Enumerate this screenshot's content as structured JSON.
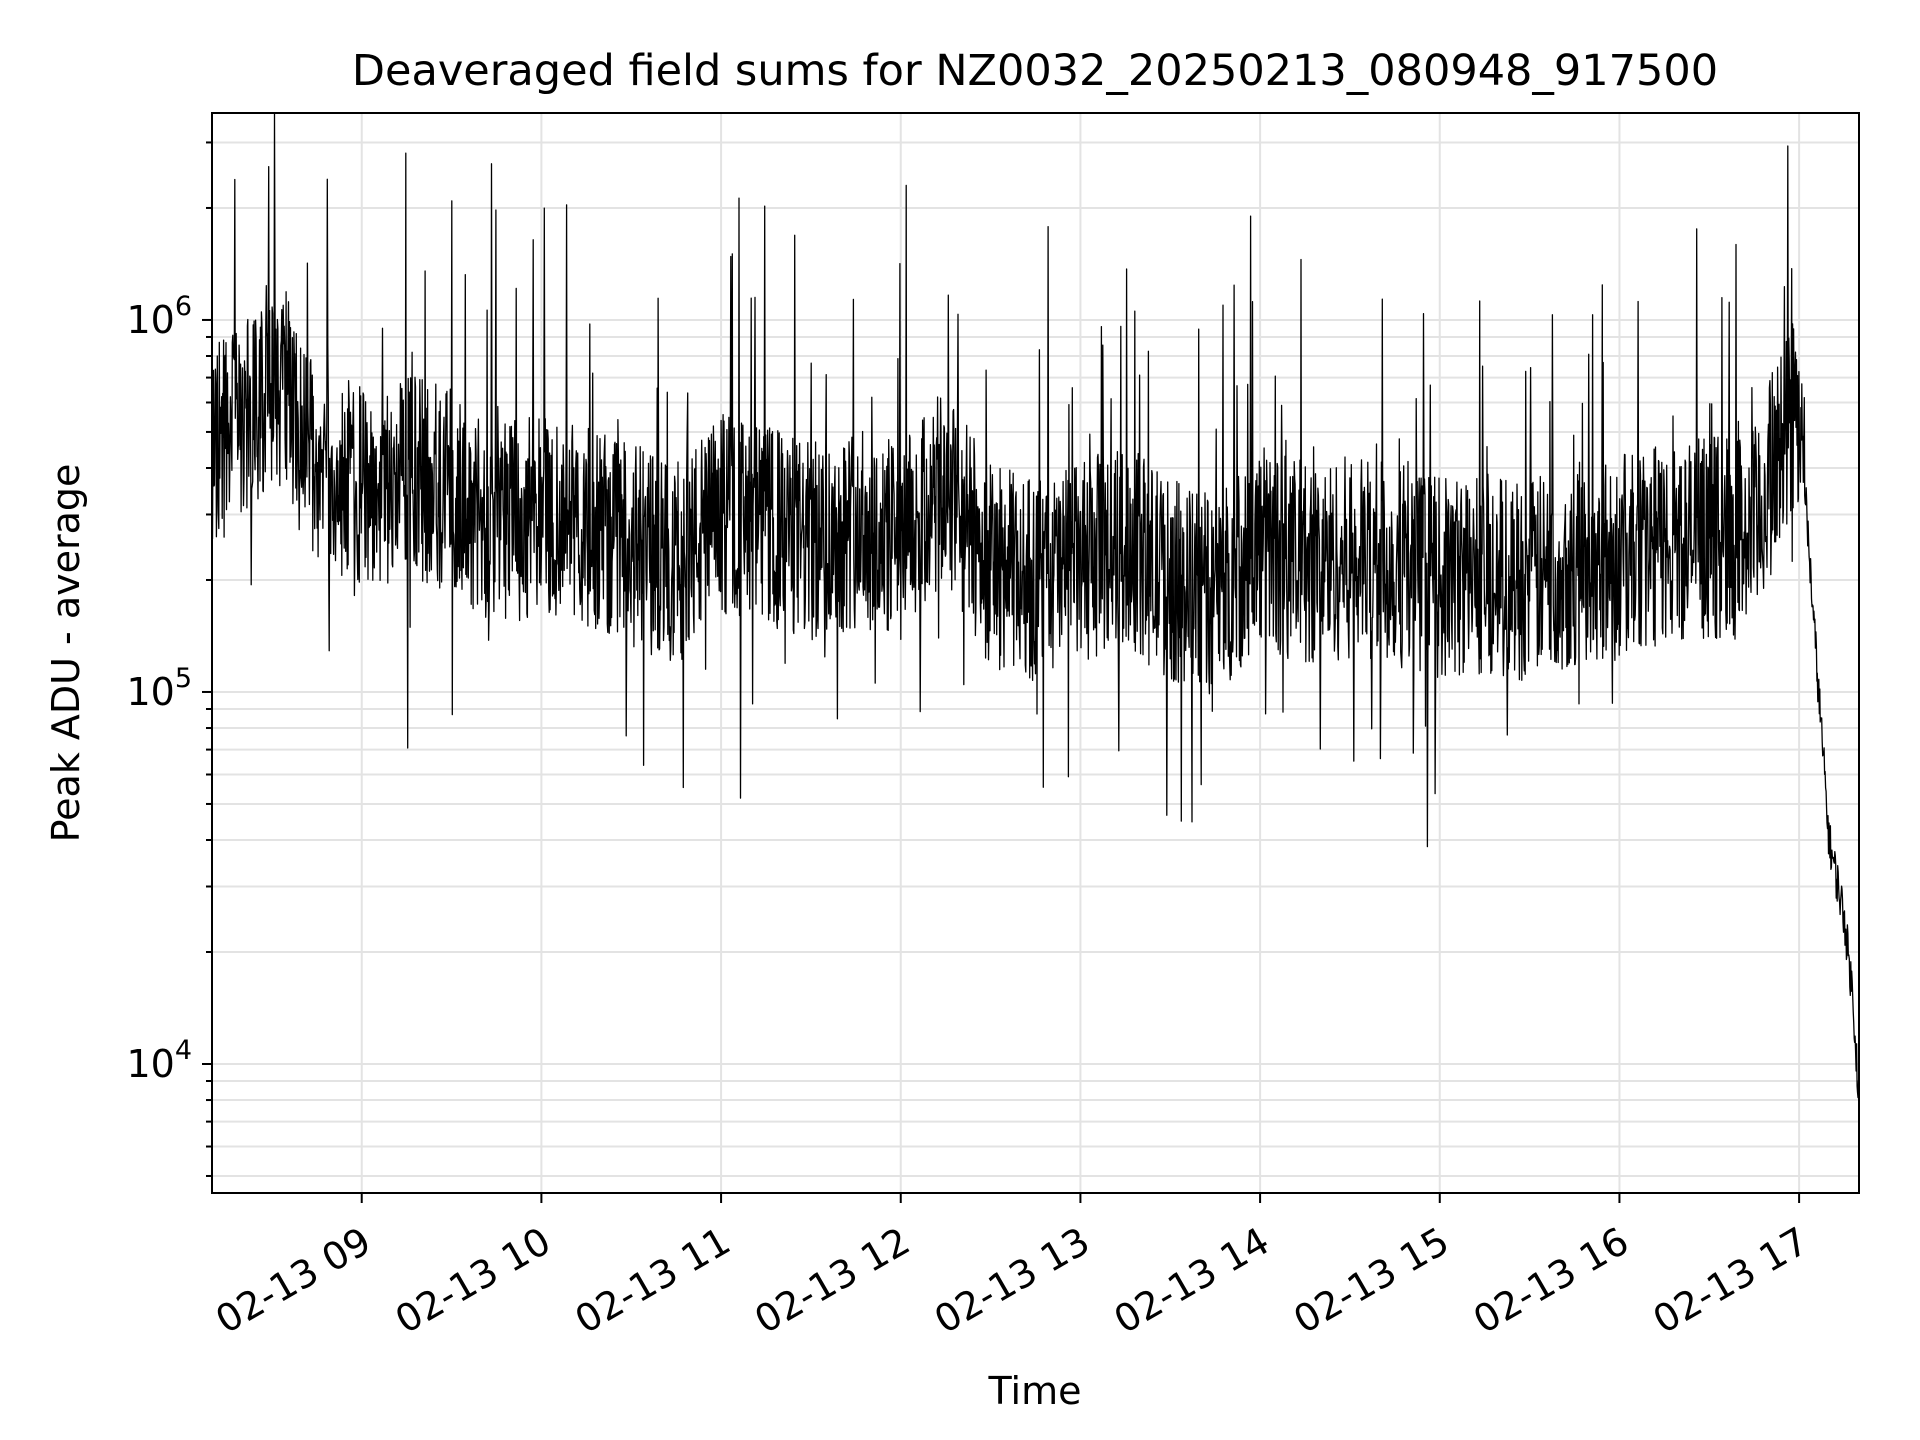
{
  "chart_data": {
    "type": "line",
    "title": "Deaveraged field sums for NZ0032_20250213_080948_917500",
    "xlabel": "Time",
    "ylabel": "Peak ADU - average",
    "y_scale": "log",
    "ylim": [
      4500,
      3600000
    ],
    "xlim": [
      "2025-02-13 08:10",
      "2025-02-13 17:20"
    ],
    "grid": true,
    "x_ticks": [
      "02-13 09",
      "02-13 10",
      "02-13 11",
      "02-13 12",
      "02-13 13",
      "02-13 14",
      "02-13 15",
      "02-13 16",
      "02-13 17"
    ],
    "y_ticks": [
      {
        "base": "10",
        "exp": "4",
        "value": 10000
      },
      {
        "base": "10",
        "exp": "5",
        "value": 100000
      },
      {
        "base": "10",
        "exp": "6",
        "value": 1000000
      }
    ],
    "line_color": "#000000",
    "series": [
      {
        "x": [
          "2025-02-13 08:10",
          "2025-02-13 08:20",
          "2025-02-13 08:30",
          "2025-02-13 08:35",
          "2025-02-13 08:40",
          "2025-02-13 08:50",
          "2025-02-13 09:00",
          "2025-02-13 09:15",
          "2025-02-13 09:30",
          "2025-02-13 09:45",
          "2025-02-13 10:00",
          "2025-02-13 10:15",
          "2025-02-13 10:30",
          "2025-02-13 10:45",
          "2025-02-13 11:00",
          "2025-02-13 11:15",
          "2025-02-13 11:30",
          "2025-02-13 11:45",
          "2025-02-13 12:00",
          "2025-02-13 12:15",
          "2025-02-13 12:30",
          "2025-02-13 12:45",
          "2025-02-13 13:00",
          "2025-02-13 13:15",
          "2025-02-13 13:30",
          "2025-02-13 13:45",
          "2025-02-13 14:00",
          "2025-02-13 14:15",
          "2025-02-13 14:30",
          "2025-02-13 14:45",
          "2025-02-13 15:00",
          "2025-02-13 15:15",
          "2025-02-13 15:30",
          "2025-02-13 15:45",
          "2025-02-13 16:00",
          "2025-02-13 16:15",
          "2025-02-13 16:30",
          "2025-02-13 16:45",
          "2025-02-13 16:55",
          "2025-02-13 17:00",
          "2025-02-13 17:05",
          "2025-02-13 17:10",
          "2025-02-13 17:15",
          "2025-02-13 17:18",
          "2025-02-13 17:20"
        ],
        "values": [
          480000,
          500000,
          700000,
          650000,
          450000,
          400000,
          350000,
          380000,
          350000,
          280000,
          300000,
          280000,
          250000,
          220000,
          300000,
          280000,
          250000,
          280000,
          250000,
          350000,
          220000,
          200000,
          220000,
          250000,
          200000,
          180000,
          250000,
          220000,
          230000,
          220000,
          200000,
          210000,
          200000,
          220000,
          230000,
          250000,
          260000,
          270000,
          500000,
          600000,
          150000,
          40000,
          25000,
          15000,
          8000
        ]
      }
    ]
  }
}
